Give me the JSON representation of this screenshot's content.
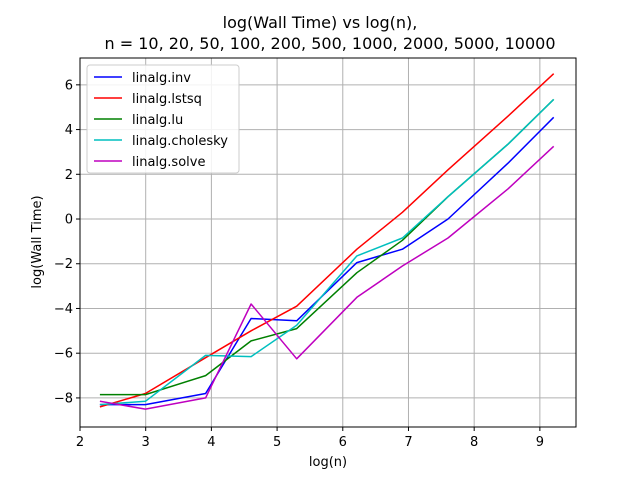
{
  "chart_data": {
    "type": "line",
    "title": "log(Wall Time) vs log(n),",
    "subtitle": "n = 10, 20, 50, 100, 200, 500, 1000, 2000, 5000, 10000",
    "xlabel": "log(n)",
    "ylabel": "log(Wall Time)",
    "xlim": [
      2.0,
      9.55
    ],
    "ylim": [
      -9.3,
      7.2
    ],
    "xticks": [
      2,
      3,
      4,
      5,
      6,
      7,
      8,
      9
    ],
    "yticks": [
      -8,
      -6,
      -4,
      -2,
      0,
      2,
      4,
      6
    ],
    "grid": true,
    "legend_position": "top-left",
    "x": [
      2.303,
      2.996,
      3.912,
      4.605,
      5.298,
      6.215,
      6.908,
      7.601,
      8.517,
      9.21
    ],
    "series": [
      {
        "name": "linalg.inv",
        "color": "#0000ff",
        "values": [
          -8.3,
          -8.3,
          -7.8,
          -4.45,
          -4.55,
          -1.95,
          -1.35,
          0.0,
          2.5,
          4.55
        ]
      },
      {
        "name": "linalg.lstsq",
        "color": "#ff0000",
        "values": [
          -8.4,
          -7.8,
          -6.2,
          -5.0,
          -3.9,
          -1.35,
          0.3,
          2.2,
          4.6,
          6.5
        ]
      },
      {
        "name": "linalg.lu",
        "color": "#008000",
        "values": [
          -7.85,
          -7.85,
          -7.0,
          -5.45,
          -4.9,
          -2.4,
          -0.95,
          1.0,
          3.35,
          5.35
        ]
      },
      {
        "name": "linalg.cholesky",
        "color": "#00bfbf",
        "values": [
          -8.3,
          -8.15,
          -6.1,
          -6.15,
          -4.75,
          -1.65,
          -0.85,
          1.0,
          3.35,
          5.35
        ]
      },
      {
        "name": "linalg.solve",
        "color": "#bf00bf",
        "values": [
          -8.15,
          -8.5,
          -8.0,
          -3.8,
          -6.25,
          -3.5,
          -2.1,
          -0.85,
          1.35,
          3.25
        ]
      }
    ]
  }
}
